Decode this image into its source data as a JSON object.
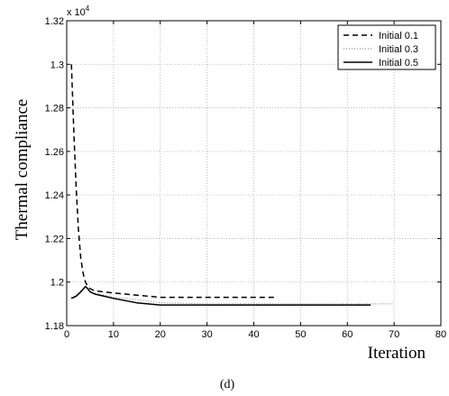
{
  "chart_data": {
    "type": "line",
    "xlabel": "Iteration",
    "ylabel": "Thermal compliance",
    "y_multiplier_label": "x 10",
    "y_multiplier_exponent": "4",
    "caption": "(d)",
    "xlim": [
      0,
      80
    ],
    "ylim": [
      1.18,
      1.32
    ],
    "xticks": [
      0,
      10,
      20,
      30,
      40,
      50,
      60,
      70,
      80
    ],
    "yticks": [
      1.18,
      1.2,
      1.22,
      1.24,
      1.26,
      1.28,
      1.3,
      1.32
    ],
    "xtick_labels": [
      "0",
      "10",
      "20",
      "30",
      "40",
      "50",
      "60",
      "70",
      "80"
    ],
    "ytick_labels": [
      "1.18",
      "1.2",
      "1.22",
      "1.24",
      "1.26",
      "1.28",
      "1.3",
      "1.32"
    ],
    "grid": true,
    "legend_position": "top-right",
    "series": [
      {
        "name": "Initial 0.1",
        "style": "dashed",
        "color": "#000000",
        "x": [
          1,
          1.5,
          2,
          2.5,
          3,
          3.5,
          4,
          4.5,
          5,
          6,
          8,
          10,
          15,
          20,
          30,
          40,
          45
        ],
        "y": [
          1.3,
          1.27,
          1.244,
          1.224,
          1.211,
          1.204,
          1.2,
          1.198,
          1.197,
          1.196,
          1.1955,
          1.195,
          1.194,
          1.193,
          1.193,
          1.193,
          1.193
        ]
      },
      {
        "name": "Initial 0.3",
        "style": "dotted",
        "color": "#7a7a7a",
        "x": [
          1,
          2,
          3,
          4,
          5,
          6,
          8,
          10,
          15,
          20,
          30,
          40,
          50,
          60,
          65,
          70
        ],
        "y": [
          1.193,
          1.194,
          1.196,
          1.197,
          1.196,
          1.195,
          1.194,
          1.193,
          1.192,
          1.1905,
          1.19,
          1.19,
          1.19,
          1.19,
          1.19,
          1.19
        ]
      },
      {
        "name": "Initial 0.5",
        "style": "solid",
        "color": "#000000",
        "x": [
          1,
          2,
          3,
          4,
          4.5,
          5,
          6,
          8,
          10,
          15,
          20,
          30,
          40,
          50,
          60,
          65
        ],
        "y": [
          1.1925,
          1.1935,
          1.1955,
          1.198,
          1.197,
          1.1955,
          1.1945,
          1.1935,
          1.1925,
          1.1905,
          1.1895,
          1.1895,
          1.1895,
          1.1895,
          1.1895,
          1.1895
        ]
      }
    ]
  }
}
